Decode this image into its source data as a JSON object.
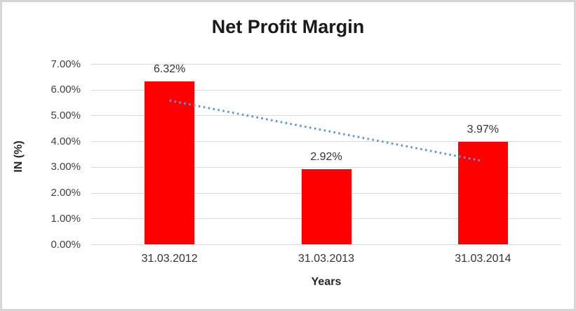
{
  "chart_data": {
    "type": "bar",
    "title": "Net Profit Margin",
    "xlabel": "Years",
    "ylabel": "IN (%)",
    "categories": [
      "31.03.2012",
      "31.03.2013",
      "31.03.2014"
    ],
    "values": [
      6.32,
      2.92,
      3.97
    ],
    "data_labels": [
      "6.32%",
      "2.92%",
      "3.97%"
    ],
    "ylim": [
      0,
      7
    ],
    "ytick_step": 1,
    "ytick_labels": [
      "0.00%",
      "1.00%",
      "2.00%",
      "3.00%",
      "4.00%",
      "5.00%",
      "6.00%",
      "7.00%"
    ],
    "grid": true,
    "legend": "none",
    "bar_color": "#ff0000",
    "gridline_color": "#d9d9d9",
    "text_color": "#333333",
    "trendline": {
      "type": "linear",
      "style": "dotted",
      "color": "#5b9bd5",
      "start_value": 5.58,
      "end_value": 3.23
    }
  }
}
